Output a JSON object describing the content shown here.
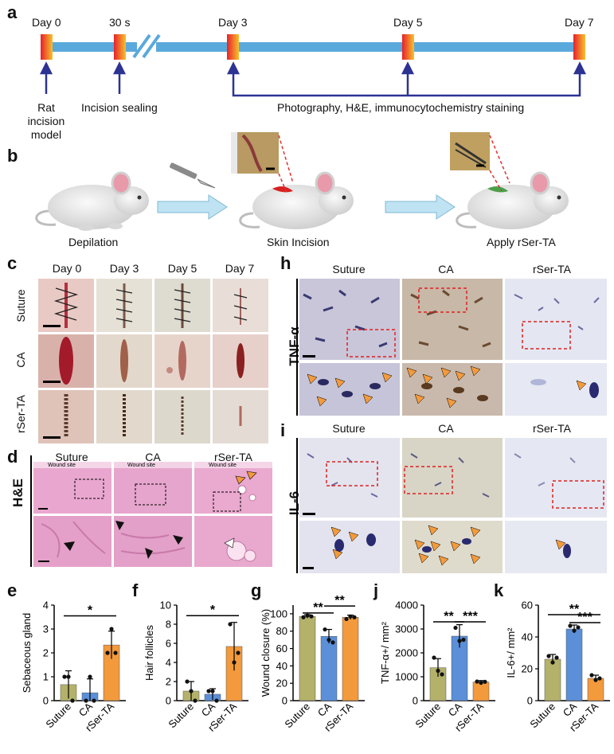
{
  "panel_labels": {
    "a": "a",
    "b": "b",
    "c": "c",
    "d": "d",
    "e": "e",
    "f": "f",
    "g": "g",
    "h": "h",
    "i": "i",
    "j": "j",
    "k": "k"
  },
  "timeline": {
    "days": [
      "Day 0",
      "30 s",
      "Day 3",
      "Day 5",
      "Day 7"
    ],
    "events": {
      "model_l1": "Rat incision",
      "model_l2": "model",
      "sealing": "Incision sealing",
      "observe": "Photography, H&E,  immunocytochemistry staining"
    },
    "colors": {
      "bar": "#5aa9dc",
      "bracket": "#2c3393"
    }
  },
  "procedure": {
    "steps": [
      "Depilation",
      "Skin Incision",
      "Apply rSer-TA"
    ]
  },
  "panel_c": {
    "cols": [
      "Day 0",
      "Day 3",
      "Day 5",
      "Day 7"
    ],
    "rows": [
      "Suture",
      "CA",
      "rSer-TA"
    ]
  },
  "panel_d": {
    "cols": [
      "Suture",
      "CA",
      "rSer-TA"
    ],
    "wound_site": "Wound site",
    "row_label": "H&E"
  },
  "panel_h": {
    "cols": [
      "Suture",
      "CA",
      "rSer-TA"
    ],
    "row_label": "TNF-α"
  },
  "panel_i": {
    "cols": [
      "Suture",
      "CA",
      "rSer-TA"
    ],
    "row_label": "IL-6"
  },
  "colors": {
    "suture": "#b4b26a",
    "ca": "#5b8fd8",
    "rserta": "#f39a3c"
  },
  "chart_data": [
    {
      "id": "e",
      "type": "bar",
      "categories": [
        "Suture",
        "CA",
        "rSer-TA"
      ],
      "values": [
        0.67,
        0.33,
        2.33
      ],
      "errors": [
        0.58,
        0.58,
        0.58
      ],
      "points": [
        [
          1,
          1,
          0
        ],
        [
          0,
          1,
          0
        ],
        [
          2,
          3,
          2
        ]
      ],
      "ylabel": "Sebaceous gland",
      "ylim": [
        0,
        4
      ],
      "yticks": [
        0,
        1,
        2,
        3,
        4
      ],
      "sig": [
        {
          "from": 0,
          "to": 2,
          "text": "*",
          "level": 3.55
        }
      ]
    },
    {
      "id": "f",
      "type": "bar",
      "categories": [
        "Suture",
        "CA",
        "rSer-TA"
      ],
      "values": [
        1,
        0.67,
        5.67
      ],
      "errors": [
        1,
        0.58,
        2.52
      ],
      "points": [
        [
          2,
          1,
          0
        ],
        [
          1,
          1,
          0
        ],
        [
          8,
          4,
          5
        ]
      ],
      "ylabel": "Hair follicles",
      "ylim": [
        0,
        10
      ],
      "yticks": [
        0,
        2,
        4,
        6,
        8,
        10
      ],
      "sig": [
        {
          "from": 0,
          "to": 2,
          "text": "*",
          "level": 8.9
        }
      ]
    },
    {
      "id": "g",
      "type": "bar",
      "categories": [
        "Suture",
        "CA",
        "rSer-TA"
      ],
      "values": [
        97,
        74,
        96
      ],
      "errors": [
        2,
        8,
        2.5
      ],
      "points": [
        [
          96,
          98,
          97
        ],
        [
          82,
          70,
          67
        ],
        [
          94,
          97,
          96
        ]
      ],
      "ylabel": "Wound closure (%)",
      "ylim": [
        0,
        110
      ],
      "yticks": [
        0,
        20,
        40,
        60,
        80,
        100
      ],
      "sig": [
        {
          "from": 0,
          "to": 1,
          "text": "**",
          "level": 101
        },
        {
          "from": 1,
          "to": 2,
          "text": "**",
          "level": 109
        }
      ]
    },
    {
      "id": "j",
      "type": "bar",
      "categories": [
        "Suture",
        "CA",
        "rSer-TA"
      ],
      "values": [
        1380,
        2700,
        780
      ],
      "errors": [
        380,
        480,
        60
      ],
      "points": [
        [
          1800,
          1250,
          1100
        ],
        [
          3050,
          2500,
          2550
        ],
        [
          800,
          750,
          790
        ]
      ],
      "ylabel": "TNF-α+/ mm²",
      "ylim": [
        0,
        4000
      ],
      "yticks": [
        0,
        1000,
        2000,
        3000,
        4000
      ],
      "sig": [
        {
          "from": 0,
          "to": 1,
          "text": "**",
          "level": 3300
        },
        {
          "from": 1,
          "to": 2,
          "text": "***",
          "level": 3300
        }
      ]
    },
    {
      "id": "k",
      "type": "bar",
      "categories": [
        "Suture",
        "CA",
        "rSer-TA"
      ],
      "values": [
        26,
        45,
        14
      ],
      "errors": [
        3,
        2.5,
        2
      ],
      "points": [
        [
          28,
          24,
          27
        ],
        [
          47,
          44,
          46
        ],
        [
          16,
          13,
          14
        ]
      ],
      "ylabel": "IL-6+/ mm²",
      "ylim": [
        0,
        60
      ],
      "yticks": [
        0,
        20,
        40,
        60
      ],
      "sig": [
        {
          "from": 0,
          "to": 2,
          "text": "**",
          "level": 54
        },
        {
          "from": 1,
          "to": 2,
          "text": "***",
          "level": 49
        }
      ]
    }
  ]
}
